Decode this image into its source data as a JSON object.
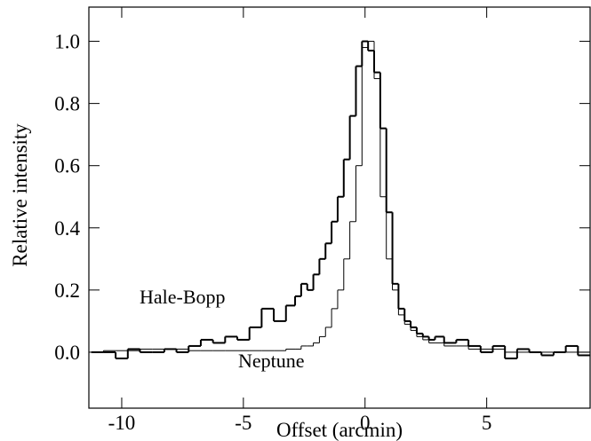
{
  "chart_data": {
    "type": "step",
    "xlabel": "Offset (arcmin)",
    "ylabel": "Relative intensity",
    "x": [
      -11,
      -10.5,
      -10,
      -9.5,
      -9,
      -8.5,
      -8,
      -7.5,
      -7,
      -6.5,
      -6,
      -5.5,
      -5,
      -4.5,
      -4,
      -3.5,
      -3,
      -2.75,
      -2.5,
      -2.25,
      -2,
      -1.75,
      -1.5,
      -1.25,
      -1,
      -0.75,
      -0.5,
      -0.25,
      0,
      0.25,
      0.5,
      0.75,
      1,
      1.25,
      1.5,
      1.75,
      2,
      2.25,
      2.5,
      2.75,
      3,
      3.5,
      4,
      4.5,
      5,
      5.5,
      6,
      6.5,
      7,
      7.5,
      8,
      8.5,
      9
    ],
    "series": [
      {
        "name": "Hale-Bopp",
        "color": "#000000",
        "values": [
          0.0,
          0.0,
          -0.02,
          0.01,
          0.0,
          0.0,
          0.01,
          0.0,
          0.02,
          0.04,
          0.03,
          0.05,
          0.04,
          0.08,
          0.14,
          0.1,
          0.15,
          0.18,
          0.22,
          0.2,
          0.25,
          0.3,
          0.35,
          0.42,
          0.5,
          0.62,
          0.76,
          0.92,
          1.0,
          0.97,
          0.9,
          0.72,
          0.45,
          0.22,
          0.14,
          0.1,
          0.08,
          0.06,
          0.05,
          0.04,
          0.05,
          0.03,
          0.04,
          0.02,
          0.0,
          0.02,
          -0.02,
          0.01,
          0.0,
          -0.01,
          0.0,
          0.02,
          -0.01
        ]
      },
      {
        "name": "Neptune",
        "color": "#000000",
        "values": [
          0.0,
          0.005,
          0.005,
          0.005,
          0.01,
          0.01,
          0.01,
          0.01,
          0.005,
          0.005,
          0.005,
          0.005,
          0.005,
          0.005,
          0.005,
          0.005,
          0.01,
          0.01,
          0.02,
          0.02,
          0.03,
          0.05,
          0.08,
          0.14,
          0.2,
          0.3,
          0.42,
          0.6,
          0.98,
          1.0,
          0.88,
          0.5,
          0.3,
          0.2,
          0.12,
          0.09,
          0.07,
          0.05,
          0.04,
          0.03,
          0.03,
          0.02,
          0.02,
          0.01,
          0.01,
          0.01,
          0.0,
          0.0,
          0.0,
          0.0,
          0.0,
          0.0,
          0.0
        ]
      }
    ],
    "xlim": [
      -11.35,
      9.25
    ],
    "ylim": [
      -0.18,
      1.11
    ],
    "xticks": [
      -10,
      -5,
      0,
      5
    ],
    "yticks": [
      {
        "value": 0,
        "label": "0.0"
      },
      {
        "value": 0.2,
        "label": "0.2"
      },
      {
        "value": 0.4,
        "label": "0.4"
      },
      {
        "value": 0.6,
        "label": "0.6"
      },
      {
        "value": 0.8,
        "label": "0.8"
      },
      {
        "value": 1,
        "label": "1.0"
      }
    ]
  }
}
